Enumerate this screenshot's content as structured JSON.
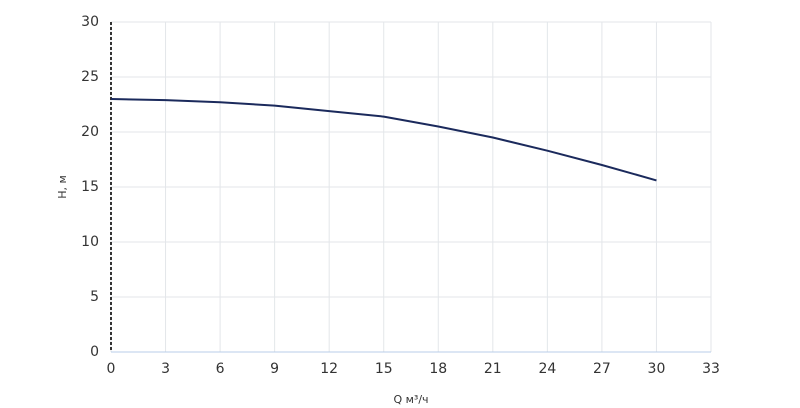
{
  "chart_data": {
    "type": "line",
    "x_label": "Q м³/ч",
    "y_label": "H, м",
    "x": [
      0,
      3,
      6,
      9,
      12,
      15,
      18,
      21,
      24,
      27,
      30
    ],
    "series": [
      {
        "name": "H",
        "color": "#1b2a5c",
        "values": [
          23.0,
          22.9,
          22.7,
          22.4,
          21.9,
          21.4,
          20.5,
          19.5,
          18.3,
          17.0,
          15.6
        ]
      }
    ],
    "xlim": [
      0,
      33
    ],
    "xticks": [
      0,
      3,
      6,
      9,
      12,
      15,
      18,
      21,
      24,
      27,
      30,
      33
    ],
    "ylim": [
      0,
      30
    ],
    "yticks": [
      0,
      5,
      10,
      15,
      20,
      25,
      30
    ],
    "grid": true
  }
}
